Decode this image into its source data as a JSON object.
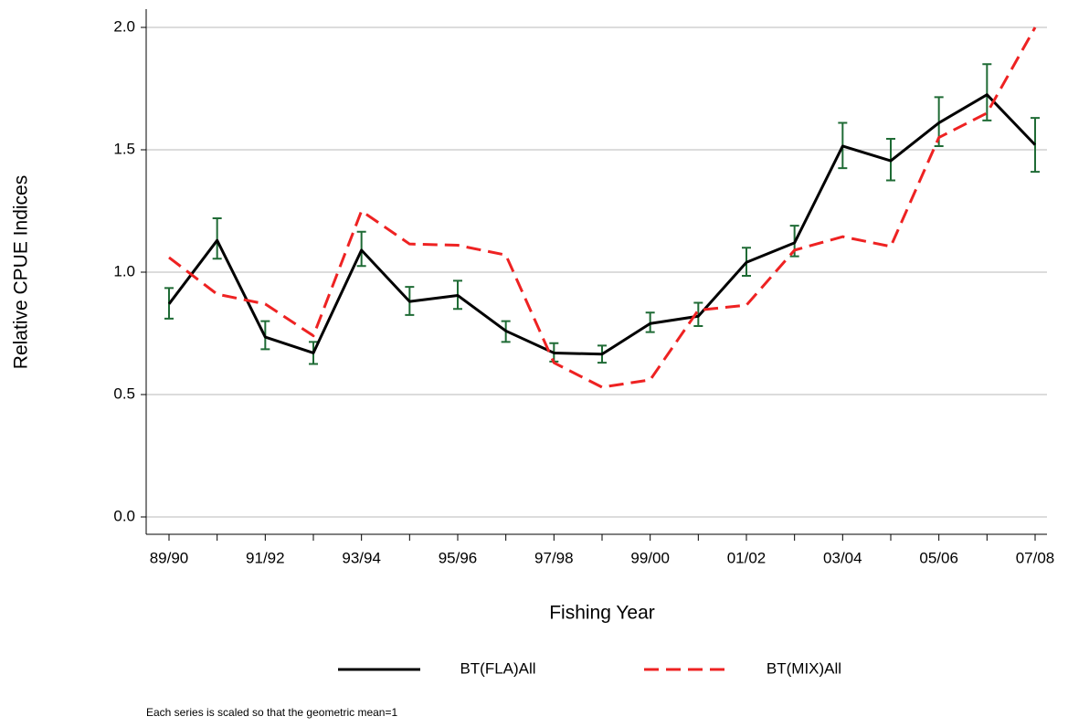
{
  "chart_data": {
    "type": "line",
    "x_label": "Fishing Year",
    "y_label": "Relative CPUE Indices",
    "footnote": "Each series is scaled so that the geometric mean=1",
    "categories": [
      "89/90",
      null,
      "91/92",
      null,
      "93/94",
      null,
      "95/96",
      null,
      "97/98",
      null,
      "99/00",
      null,
      "01/02",
      null,
      "03/04",
      null,
      "05/06",
      null,
      "07/08"
    ],
    "series": [
      {
        "name": "BT(FLA)All",
        "color": "#000000",
        "dash": false,
        "error_color": "#1f6b35",
        "values": [
          0.87,
          1.13,
          0.735,
          0.67,
          1.09,
          0.88,
          0.905,
          0.76,
          0.67,
          0.665,
          0.79,
          0.82,
          1.04,
          1.12,
          1.515,
          1.455,
          1.61,
          1.725,
          1.52
        ],
        "lower": [
          0.81,
          1.055,
          0.685,
          0.625,
          1.025,
          0.825,
          0.85,
          0.715,
          0.635,
          0.63,
          0.755,
          0.78,
          0.985,
          1.065,
          1.425,
          1.375,
          1.515,
          1.62,
          1.41
        ],
        "upper": [
          0.935,
          1.22,
          0.8,
          0.715,
          1.165,
          0.94,
          0.965,
          0.8,
          0.71,
          0.7,
          0.835,
          0.875,
          1.1,
          1.19,
          1.61,
          1.545,
          1.715,
          1.85,
          1.63
        ]
      },
      {
        "name": "BT(MIX)All",
        "color": "#ee2222",
        "dash": true,
        "values": [
          1.06,
          0.91,
          0.87,
          0.74,
          1.25,
          1.115,
          1.11,
          1.07,
          0.63,
          0.53,
          0.56,
          0.845,
          0.865,
          1.09,
          1.145,
          1.105,
          1.55,
          1.65,
          2.0
        ]
      }
    ],
    "ylim": [
      0,
      2
    ],
    "yticks": [
      {
        "value": 0,
        "label": "0.0"
      },
      0.5,
      {
        "value": 1,
        "label": "1.0"
      },
      1.5,
      {
        "value": 2,
        "label": "2.0"
      }
    ],
    "grid": true,
    "legend": "bottom"
  }
}
